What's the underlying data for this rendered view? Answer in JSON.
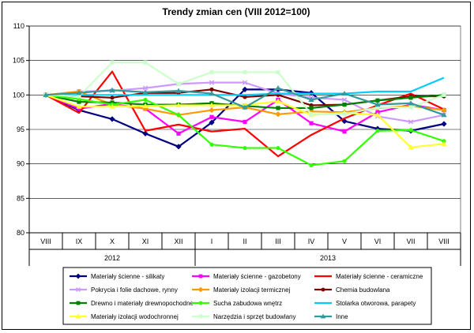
{
  "chart_data": {
    "type": "line",
    "title": "Trendy zmian cen (VIII 2012=100)",
    "xlabel": "",
    "ylabel": "",
    "ylim": [
      80,
      110
    ],
    "yticks": [
      80,
      85,
      90,
      95,
      100,
      105,
      110
    ],
    "categories": [
      "VIII",
      "IX",
      "X",
      "XI",
      "XII",
      "I",
      "II",
      "III",
      "IV",
      "V",
      "VI",
      "VII",
      "VIII"
    ],
    "year_groups": [
      {
        "label": "2012",
        "start": 0,
        "end": 4
      },
      {
        "label": "2013",
        "start": 5,
        "end": 12
      }
    ],
    "grid": true,
    "legend_position": "bottom",
    "series": [
      {
        "name": "Materiały ścienne - silikaty",
        "color": "#000080",
        "marker": "diamond",
        "values": [
          100,
          97.8,
          96.5,
          94.4,
          92.5,
          96.0,
          100.8,
          100.8,
          100.3,
          96.2,
          95.1,
          94.8,
          95.8
        ]
      },
      {
        "name": "Materiały ścienne - gazobetony",
        "color": "#ff00ff",
        "marker": "square",
        "values": [
          100,
          98.0,
          98.7,
          98.0,
          94.4,
          96.8,
          96.1,
          99.3,
          95.9,
          94.7,
          97.5,
          98.6,
          97.8
        ]
      },
      {
        "name": "Materiały ścienne - ceramiczne",
        "color": "#ff0000",
        "marker": "none",
        "values": [
          100,
          97.4,
          103.4,
          94.8,
          95.7,
          94.7,
          95.1,
          91.1,
          94.2,
          96.6,
          98.5,
          100.2,
          97.9
        ]
      },
      {
        "name": "Pokrycia i folie dachowe, rynny",
        "color": "#cc99ff",
        "marker": "cross",
        "values": [
          100,
          100.5,
          100.6,
          101.0,
          101.6,
          101.8,
          101.8,
          100.2,
          99.6,
          99.3,
          96.9,
          96.1,
          97.1
        ]
      },
      {
        "name": "Materiały izolacji termicznej",
        "color": "#ff9900",
        "marker": "diamond",
        "values": [
          100,
          100.5,
          98.6,
          98.0,
          97.1,
          97.8,
          98.2,
          97.2,
          97.6,
          97.5,
          98.1,
          98.4,
          97.8
        ]
      },
      {
        "name": "Chemia budowlana",
        "color": "#800000",
        "marker": "circle",
        "values": [
          100,
          99.8,
          99.6,
          100.3,
          100.3,
          100.8,
          99.7,
          100.0,
          98.5,
          98.6,
          99.2,
          99.8,
          99.8
        ]
      },
      {
        "name": "Drewno i materiały drewnopochodne",
        "color": "#008000",
        "marker": "square",
        "values": [
          100,
          99.0,
          98.9,
          98.6,
          98.6,
          98.8,
          98.4,
          98.1,
          98.1,
          98.6,
          99.2,
          99.6,
          100.0
        ]
      },
      {
        "name": "Sucha zabudowa wnętrz",
        "color": "#33ff00",
        "marker": "circle",
        "values": [
          100,
          99.4,
          98.6,
          99.3,
          97.1,
          92.8,
          92.3,
          92.3,
          89.8,
          90.4,
          94.8,
          94.9,
          93.3
        ]
      },
      {
        "name": "Stolarka otworowa, parapety",
        "color": "#00ccff",
        "marker": "none",
        "values": [
          100,
          100.0,
          100.0,
          100.0,
          100.0,
          100.0,
          100.0,
          100.2,
          100.2,
          100.2,
          100.5,
          100.5,
          102.5
        ]
      },
      {
        "name": "Materiały izolacji wodochronnej",
        "color": "#ffff33",
        "marker": "triangle",
        "values": [
          100,
          98.3,
          98.3,
          98.4,
          98.5,
          98.5,
          98.5,
          99.1,
          97.1,
          97.4,
          97.1,
          92.4,
          92.9
        ]
      },
      {
        "name": "Narzędzia i sprzęt budowlany",
        "color": "#ccffcc",
        "marker": "square",
        "values": [
          100,
          99.8,
          104.7,
          104.7,
          101.6,
          103.3,
          103.3,
          103.3,
          97.2,
          97.2,
          98.2,
          98.2,
          100.0
        ]
      },
      {
        "name": "Inne",
        "color": "#339999",
        "marker": "triangle",
        "values": [
          100,
          100.3,
          100.7,
          100.4,
          100.6,
          100.2,
          98.2,
          101.0,
          99.3,
          100.2,
          98.6,
          98.8,
          97.1
        ]
      }
    ]
  }
}
